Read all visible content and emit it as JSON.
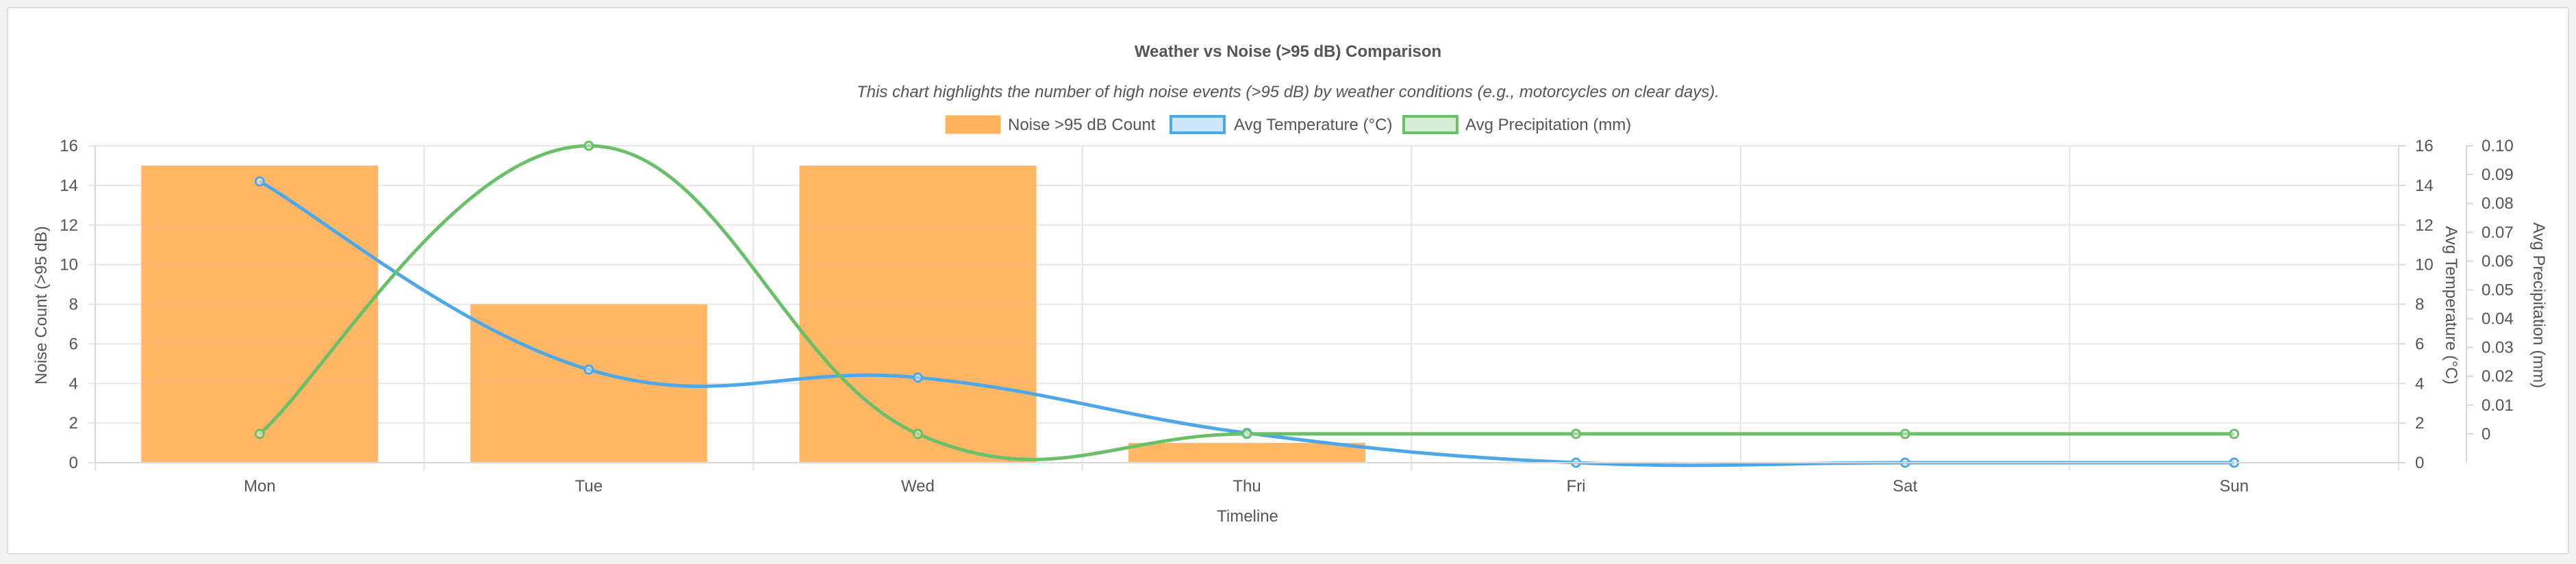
{
  "chart_data": {
    "type": "bar",
    "title": "Weather vs Noise (>95 dB) Comparison",
    "subtitle": "This chart highlights the number of high noise events (>95 dB) by weather conditions (e.g., motorcycles on clear days).",
    "categories": [
      "Mon",
      "Tue",
      "Wed",
      "Thu",
      "Fri",
      "Sat",
      "Sun"
    ],
    "xlabel": "Timeline",
    "y_left": {
      "label": "Noise Count (>95 dB)",
      "lim": [
        0,
        16
      ],
      "ticks": [
        "0",
        "2",
        "4",
        "6",
        "8",
        "10",
        "12",
        "14",
        "16"
      ]
    },
    "y_right1": {
      "label": "Avg Temperature (°C)",
      "lim": [
        0,
        16
      ],
      "ticks": [
        "0",
        "2",
        "4",
        "6",
        "8",
        "10",
        "12",
        "14",
        "16"
      ]
    },
    "y_right2": {
      "label": "Avg Precipitation (mm)",
      "lim": [
        -0.01,
        0.1
      ],
      "ticks": [
        "0",
        "0.01",
        "0.02",
        "0.03",
        "0.04",
        "0.05",
        "0.06",
        "0.07",
        "0.08",
        "0.09",
        "0.10"
      ]
    },
    "grid": true,
    "legend_position": "top",
    "series": [
      {
        "name": "Noise >95 dB Count",
        "kind": "bar",
        "axis": "y_left",
        "color": "#ffb35e",
        "values": [
          15,
          8,
          15,
          1,
          0,
          0,
          0
        ]
      },
      {
        "name": "Avg Temperature (°C)",
        "kind": "line",
        "axis": "y_right1",
        "color": "#4ea8e8",
        "values": [
          14.2,
          4.7,
          4.3,
          1.5,
          0,
          0,
          0
        ]
      },
      {
        "name": "Avg Precipitation (mm)",
        "kind": "line",
        "axis": "y_right2",
        "color": "#6abf69",
        "values": [
          0,
          0.1,
          0,
          0,
          0,
          0,
          0
        ]
      }
    ]
  }
}
